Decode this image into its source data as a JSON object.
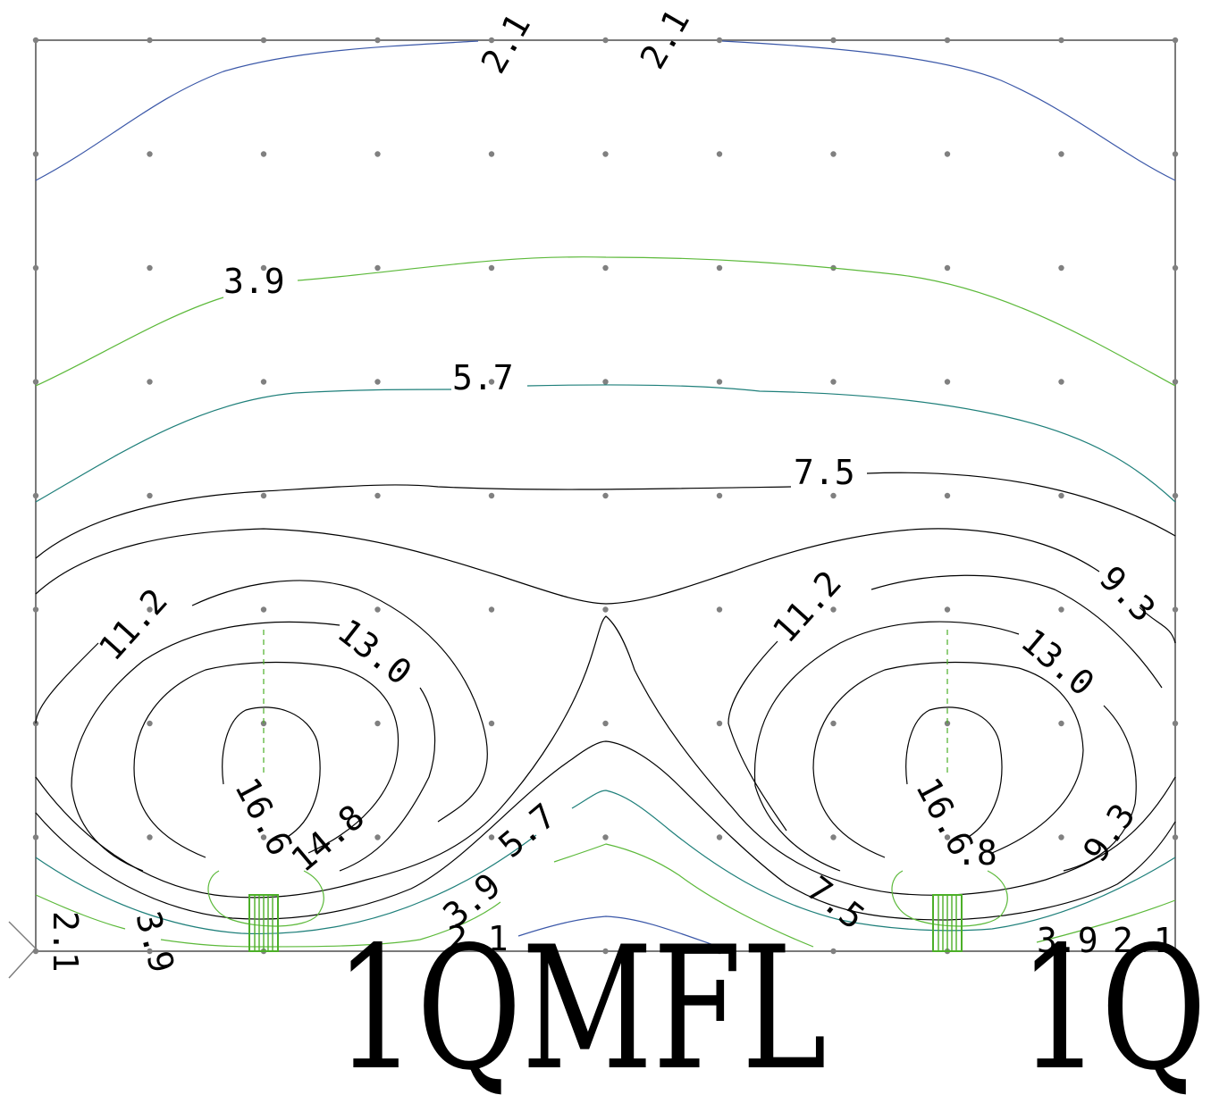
{
  "colors": {
    "level_2_1": "#3a57a8",
    "level_3_9": "#5cb93a",
    "level_5_7": "#1e7f7a",
    "level_7_5_up": "#000000",
    "luminaire": "#4caf28",
    "frame": "#7a7a7a"
  },
  "isolines": [
    {
      "value": "2.1",
      "color_key": "level_2_1"
    },
    {
      "value": "3.9",
      "color_key": "level_3_9"
    },
    {
      "value": "5.7",
      "color_key": "level_5_7"
    },
    {
      "value": "7.5",
      "color_key": "level_7_5_up"
    },
    {
      "value": "9.3",
      "color_key": "level_7_5_up"
    },
    {
      "value": "11.2",
      "color_key": "level_7_5_up"
    },
    {
      "value": "13.0",
      "color_key": "level_7_5_up"
    },
    {
      "value": "14.8",
      "color_key": "level_7_5_up"
    },
    {
      "value": "16.6",
      "color_key": "level_7_5_up"
    }
  ],
  "labels": {
    "top_left_2_1": "2.1",
    "top_right_2_1": "2.1",
    "upper_3_9": "3.9",
    "upper_5_7": "5.7",
    "upper_7_5": "7.5",
    "left_11_2": "11.2",
    "left_13_0": "13.0",
    "left_14_8": "14.8",
    "left_16_6": "16.6",
    "right_11_2": "11.2",
    "right_9_3": "9.3",
    "right_13_0": "13.0",
    "right_16_6": "16.6",
    "right_14_8_partial": ".8",
    "right_9_3_lower": "9.3",
    "center_5_7": "5.7",
    "center_3_9": "3.9",
    "center_2_1": "2.1",
    "center_7_5": "7.5",
    "bottom_left_2_1": "2.1",
    "bottom_left_3_9": "3.9",
    "bottom_right_3_9": "3.9",
    "bottom_right_2_1": "2.1"
  },
  "luminaire_labels": {
    "left": "1QMFL",
    "right": "1Q"
  }
}
